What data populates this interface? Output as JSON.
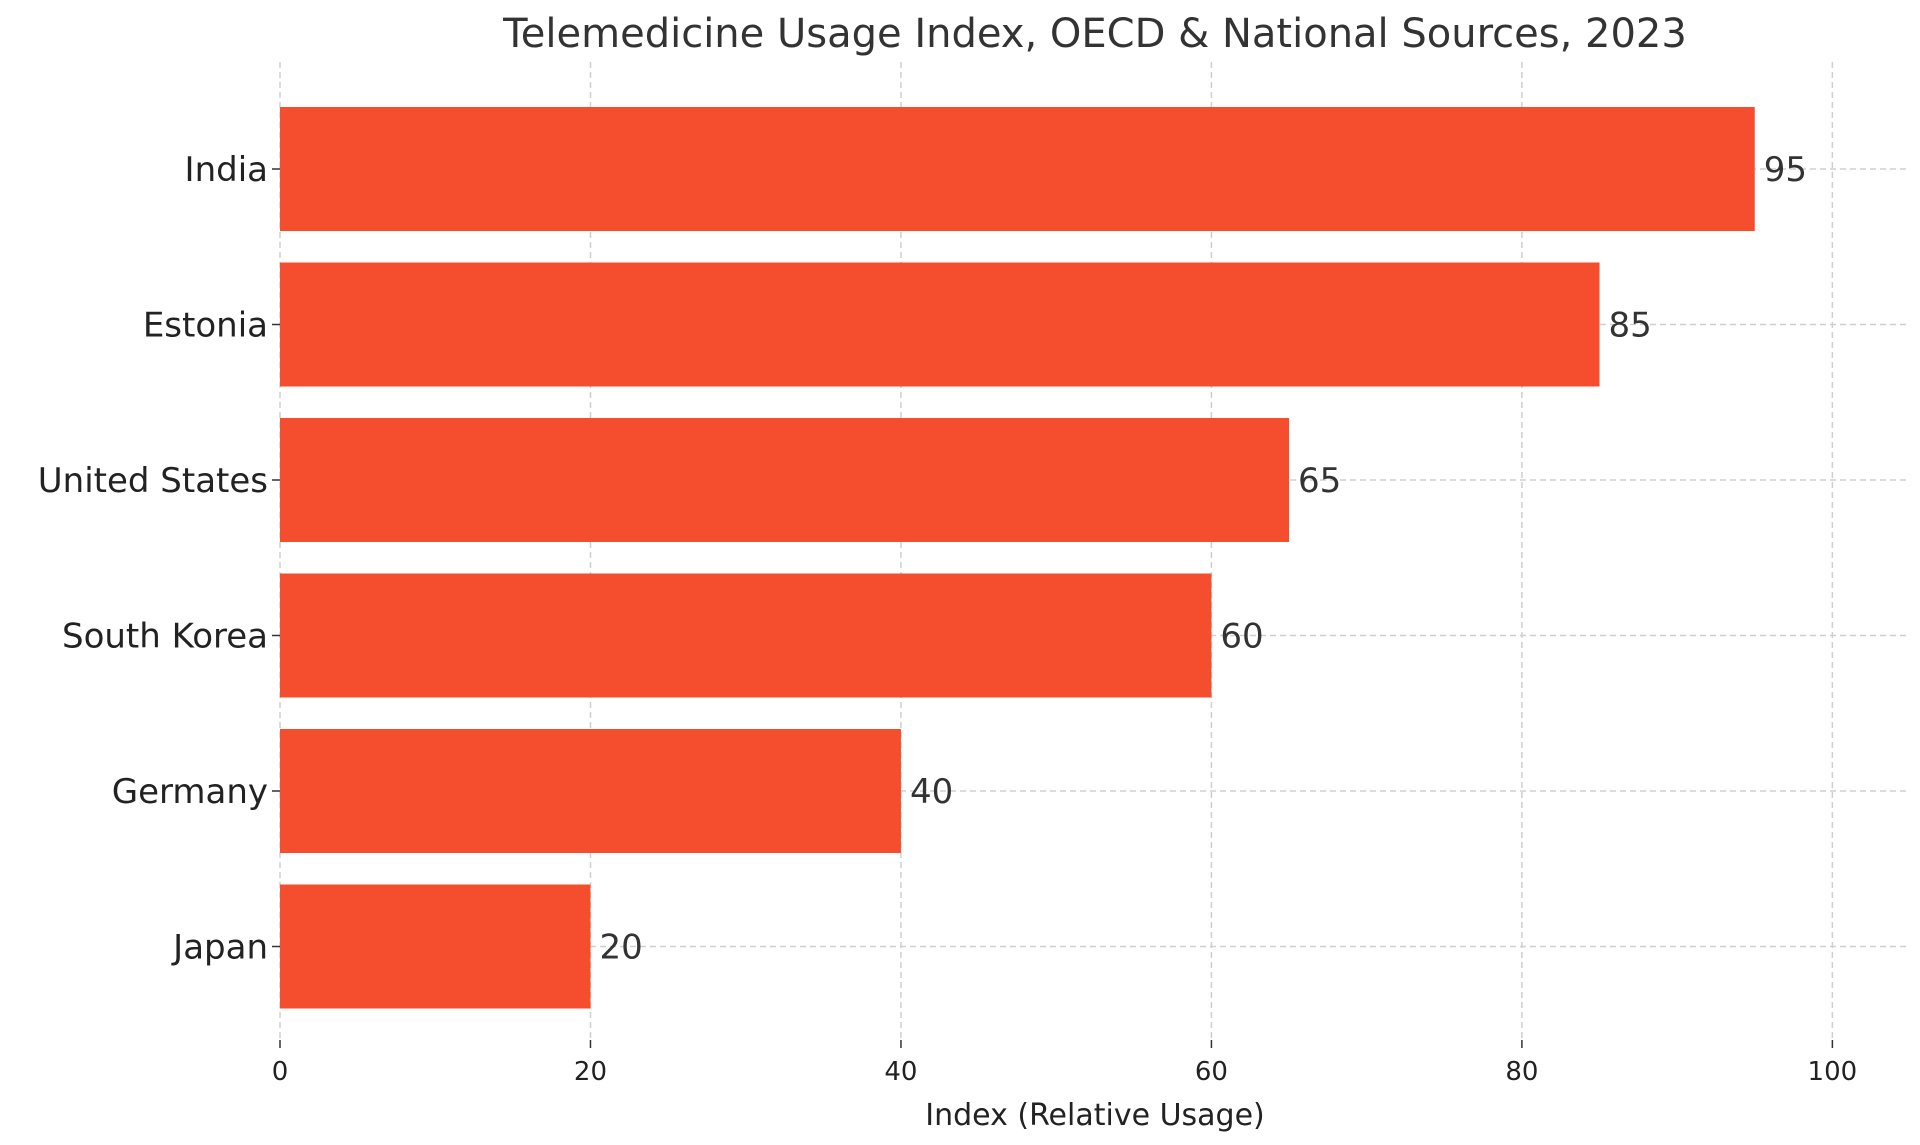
{
  "chart_data": {
    "type": "bar",
    "orientation": "horizontal",
    "title": "Telemedicine Usage Index, OECD & National Sources, 2023",
    "xlabel": "Index (Relative Usage)",
    "ylabel": "",
    "categories": [
      "India",
      "Estonia",
      "United States",
      "South Korea",
      "Germany",
      "Japan"
    ],
    "values": [
      95,
      85,
      65,
      60,
      40,
      20
    ],
    "value_labels": [
      "95",
      "85",
      "65",
      "60",
      "40",
      "20"
    ],
    "xlim": [
      0,
      105
    ],
    "xticks": [
      0,
      20,
      40,
      60,
      80,
      100
    ],
    "xtick_labels": [
      "0",
      "20",
      "40",
      "60",
      "80",
      "100"
    ],
    "grid": true,
    "grid_style": "dashed",
    "bar_color": "#F44E2E",
    "grid_color": "#cfcfcf",
    "legend": "none"
  }
}
